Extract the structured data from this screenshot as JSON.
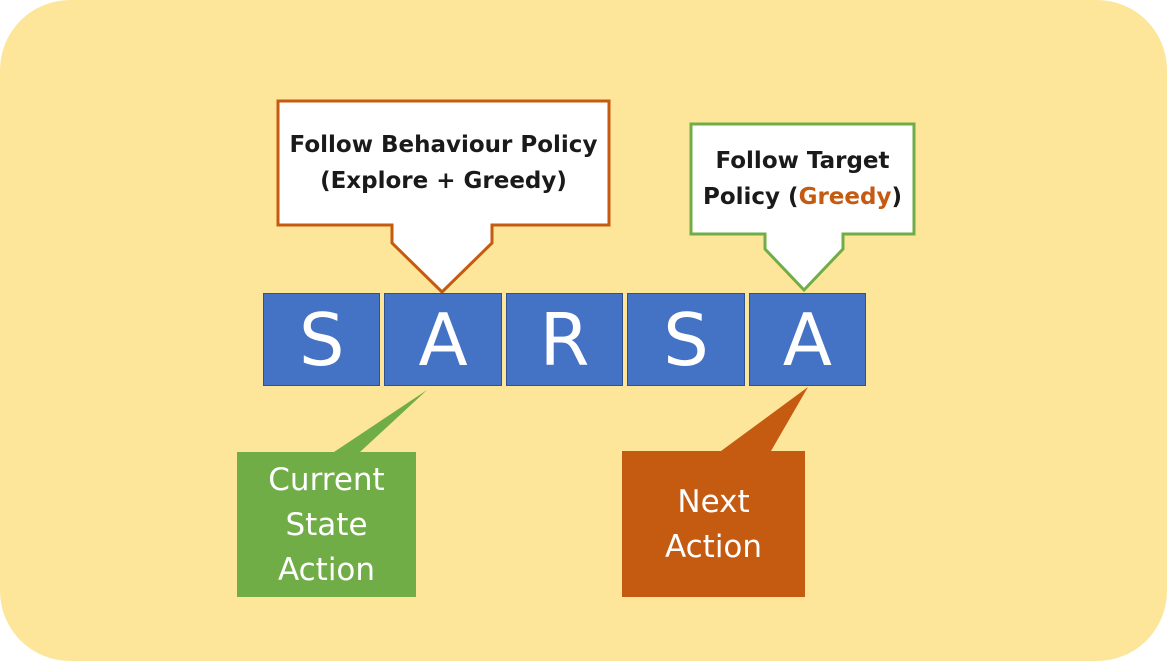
{
  "sarsa_letters": [
    "S",
    "A",
    "R",
    "S",
    "A"
  ],
  "behaviour_callout": {
    "line1": "Follow Behaviour Policy",
    "line2": "(Explore + Greedy)"
  },
  "target_callout": {
    "line1": "Follow Target",
    "line2_prefix": "Policy (",
    "line2_highlight": "Greedy",
    "line2_suffix": ")"
  },
  "current_callout": {
    "line1": "Current",
    "line2": "State",
    "line3": "Action"
  },
  "next_callout": {
    "line1": "Next",
    "line2": "Action"
  },
  "colors": {
    "background": "#fde69a",
    "letter_box": "#4472c4",
    "behaviour_border": "#c55a11",
    "target_border": "#70ad47",
    "current_fill": "#70ad47",
    "next_fill": "#c55a11",
    "greedy_text": "#c55a11"
  }
}
